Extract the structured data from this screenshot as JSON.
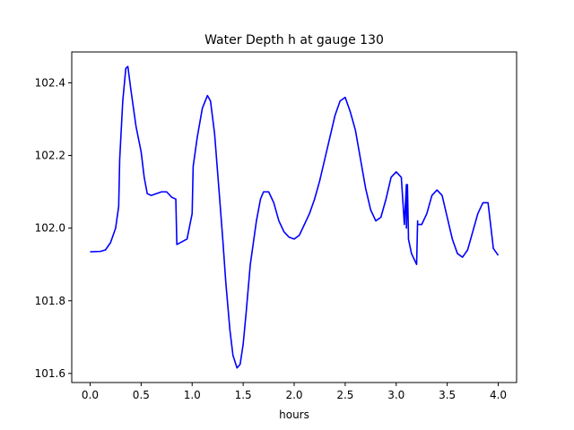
{
  "chart_data": {
    "type": "line",
    "title": "Water Depth h at gauge 130",
    "xlabel": "hours",
    "ylabel": "",
    "xlim": [
      -0.18,
      4.18
    ],
    "ylim": [
      101.575,
      102.485
    ],
    "xticks": [
      0.0,
      0.5,
      1.0,
      1.5,
      2.0,
      2.5,
      3.0,
      3.5,
      4.0
    ],
    "xtick_labels": [
      "0.0",
      "0.5",
      "1.0",
      "1.5",
      "2.0",
      "2.5",
      "3.0",
      "3.5",
      "4.0"
    ],
    "yticks": [
      101.6,
      101.8,
      102.0,
      102.2,
      102.4
    ],
    "ytick_labels": [
      "101.6",
      "101.8",
      "102.0",
      "102.2",
      "102.4"
    ],
    "grid": false,
    "legend": "none",
    "series": [
      {
        "color": "#0000ff",
        "x": [
          0.0,
          0.1,
          0.15,
          0.2,
          0.25,
          0.28,
          0.29,
          0.32,
          0.35,
          0.37,
          0.4,
          0.45,
          0.5,
          0.53,
          0.56,
          0.6,
          0.65,
          0.7,
          0.75,
          0.8,
          0.84,
          0.85,
          0.95,
          1.0,
          1.01,
          1.05,
          1.1,
          1.15,
          1.18,
          1.22,
          1.27,
          1.3,
          1.33,
          1.37,
          1.4,
          1.44,
          1.47,
          1.5,
          1.53,
          1.57,
          1.6,
          1.63,
          1.67,
          1.7,
          1.75,
          1.8,
          1.85,
          1.9,
          1.95,
          2.0,
          2.05,
          2.1,
          2.15,
          2.2,
          2.25,
          2.3,
          2.35,
          2.4,
          2.45,
          2.5,
          2.55,
          2.6,
          2.65,
          2.7,
          2.75,
          2.8,
          2.85,
          2.9,
          2.95,
          3.0,
          3.05,
          3.08,
          3.1,
          3.1,
          3.11,
          3.12,
          3.12,
          3.15,
          3.2,
          3.21,
          3.21,
          3.25,
          3.3,
          3.35,
          3.4,
          3.45,
          3.5,
          3.55,
          3.6,
          3.65,
          3.7,
          3.75,
          3.8,
          3.85,
          3.9,
          3.95,
          3.95,
          4.0
        ],
        "y": [
          101.935,
          101.936,
          101.94,
          101.96,
          102.0,
          102.06,
          102.19,
          102.35,
          102.44,
          102.445,
          102.38,
          102.28,
          102.21,
          102.14,
          102.095,
          102.09,
          102.095,
          102.1,
          102.1,
          102.085,
          102.08,
          101.955,
          101.97,
          102.04,
          102.17,
          102.25,
          102.33,
          102.365,
          102.35,
          102.26,
          102.08,
          101.97,
          101.85,
          101.72,
          101.65,
          101.615,
          101.625,
          101.68,
          101.77,
          101.9,
          101.96,
          102.02,
          102.08,
          102.1,
          102.1,
          102.07,
          102.02,
          101.99,
          101.975,
          101.97,
          101.98,
          102.01,
          102.04,
          102.08,
          102.13,
          102.19,
          102.25,
          102.31,
          102.35,
          102.36,
          102.32,
          102.27,
          102.19,
          102.11,
          102.05,
          102.02,
          102.03,
          102.08,
          102.14,
          102.155,
          102.14,
          102.01,
          102.12,
          102.0,
          102.12,
          101.98,
          101.97,
          101.93,
          101.9,
          102.02,
          102.01,
          102.01,
          102.04,
          102.09,
          102.105,
          102.09,
          102.03,
          101.97,
          101.93,
          101.92,
          101.94,
          101.99,
          102.04,
          102.07,
          102.07,
          101.95,
          101.945,
          101.925
        ]
      }
    ]
  }
}
